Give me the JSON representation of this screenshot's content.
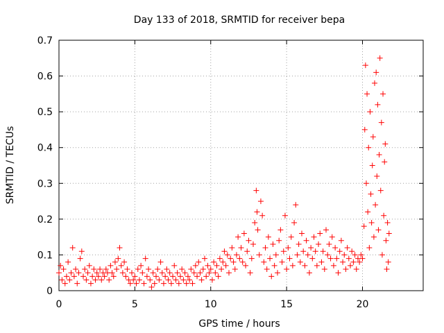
{
  "chart_data": {
    "type": "scatter",
    "title": "Day 133 of 2018, SRMTID for receiver bepa",
    "xlabel": "GPS time / hours",
    "ylabel": "SRMTID / TECUs",
    "xlim": [
      0,
      24
    ],
    "ylim": [
      0,
      0.7
    ],
    "x_ticks": [
      0,
      5,
      10,
      15,
      20
    ],
    "x_tick_labels": [
      "0",
      "5",
      "10",
      "15",
      "20"
    ],
    "y_ticks": [
      0,
      0.1,
      0.2,
      0.3,
      0.4,
      0.5,
      0.6,
      0.7
    ],
    "y_tick_labels": [
      "0",
      "0.1",
      "0.2",
      "0.3",
      "0.4",
      "0.5",
      "0.6",
      "0.7"
    ],
    "grid": true,
    "marker": "+",
    "series": [
      {
        "name": "SRMTID",
        "color": "#ff0000",
        "points": [
          [
            0.0,
            0.05
          ],
          [
            0.1,
            0.07
          ],
          [
            0.2,
            0.03
          ],
          [
            0.3,
            0.06
          ],
          [
            0.4,
            0.02
          ],
          [
            0.5,
            0.04
          ],
          [
            0.6,
            0.08
          ],
          [
            0.7,
            0.03
          ],
          [
            0.8,
            0.05
          ],
          [
            0.9,
            0.12
          ],
          [
            1.0,
            0.04
          ],
          [
            1.1,
            0.06
          ],
          [
            1.2,
            0.02
          ],
          [
            1.3,
            0.05
          ],
          [
            1.4,
            0.09
          ],
          [
            1.5,
            0.11
          ],
          [
            1.6,
            0.04
          ],
          [
            1.7,
            0.06
          ],
          [
            1.8,
            0.03
          ],
          [
            1.9,
            0.05
          ],
          [
            2.0,
            0.07
          ],
          [
            2.1,
            0.02
          ],
          [
            2.2,
            0.04
          ],
          [
            2.3,
            0.06
          ],
          [
            2.4,
            0.03
          ],
          [
            2.5,
            0.05
          ],
          [
            2.6,
            0.04
          ],
          [
            2.7,
            0.06
          ],
          [
            2.8,
            0.03
          ],
          [
            2.9,
            0.05
          ],
          [
            3.0,
            0.04
          ],
          [
            3.1,
            0.06
          ],
          [
            3.2,
            0.05
          ],
          [
            3.3,
            0.03
          ],
          [
            3.4,
            0.07
          ],
          [
            3.5,
            0.05
          ],
          [
            3.6,
            0.04
          ],
          [
            3.7,
            0.08
          ],
          [
            3.8,
            0.06
          ],
          [
            3.9,
            0.09
          ],
          [
            4.0,
            0.12
          ],
          [
            4.1,
            0.07
          ],
          [
            4.2,
            0.05
          ],
          [
            4.3,
            0.08
          ],
          [
            4.4,
            0.04
          ],
          [
            4.5,
            0.06
          ],
          [
            4.6,
            0.03
          ],
          [
            4.7,
            0.02
          ],
          [
            4.8,
            0.05
          ],
          [
            4.9,
            0.03
          ],
          [
            5.0,
            0.04
          ],
          [
            5.1,
            0.02
          ],
          [
            5.2,
            0.06
          ],
          [
            5.3,
            0.03
          ],
          [
            5.4,
            0.07
          ],
          [
            5.5,
            0.05
          ],
          [
            5.6,
            0.02
          ],
          [
            5.7,
            0.09
          ],
          [
            5.8,
            0.04
          ],
          [
            5.9,
            0.06
          ],
          [
            6.0,
            0.03
          ],
          [
            6.1,
            0.01
          ],
          [
            6.2,
            0.05
          ],
          [
            6.3,
            0.02
          ],
          [
            6.4,
            0.04
          ],
          [
            6.5,
            0.06
          ],
          [
            6.6,
            0.03
          ],
          [
            6.7,
            0.08
          ],
          [
            6.8,
            0.05
          ],
          [
            6.9,
            0.02
          ],
          [
            7.0,
            0.04
          ],
          [
            7.1,
            0.06
          ],
          [
            7.2,
            0.03
          ],
          [
            7.3,
            0.05
          ],
          [
            7.4,
            0.02
          ],
          [
            7.5,
            0.04
          ],
          [
            7.6,
            0.07
          ],
          [
            7.7,
            0.03
          ],
          [
            7.8,
            0.05
          ],
          [
            7.9,
            0.02
          ],
          [
            8.0,
            0.04
          ],
          [
            8.1,
            0.06
          ],
          [
            8.2,
            0.03
          ],
          [
            8.3,
            0.05
          ],
          [
            8.4,
            0.02
          ],
          [
            8.5,
            0.04
          ],
          [
            8.6,
            0.03
          ],
          [
            8.7,
            0.06
          ],
          [
            8.8,
            0.02
          ],
          [
            8.9,
            0.05
          ],
          [
            9.0,
            0.07
          ],
          [
            9.1,
            0.04
          ],
          [
            9.2,
            0.08
          ],
          [
            9.3,
            0.05
          ],
          [
            9.4,
            0.03
          ],
          [
            9.5,
            0.06
          ],
          [
            9.6,
            0.09
          ],
          [
            9.7,
            0.04
          ],
          [
            9.8,
            0.07
          ],
          [
            9.9,
            0.05
          ],
          [
            10.0,
            0.06
          ],
          [
            10.1,
            0.03
          ],
          [
            10.2,
            0.08
          ],
          [
            10.3,
            0.05
          ],
          [
            10.4,
            0.07
          ],
          [
            10.5,
            0.04
          ],
          [
            10.6,
            0.09
          ],
          [
            10.7,
            0.06
          ],
          [
            10.8,
            0.08
          ],
          [
            10.9,
            0.11
          ],
          [
            11.0,
            0.07
          ],
          [
            11.1,
            0.1
          ],
          [
            11.2,
            0.05
          ],
          [
            11.3,
            0.09
          ],
          [
            11.4,
            0.12
          ],
          [
            11.5,
            0.08
          ],
          [
            11.6,
            0.06
          ],
          [
            11.7,
            0.1
          ],
          [
            11.8,
            0.15
          ],
          [
            11.9,
            0.09
          ],
          [
            12.0,
            0.12
          ],
          [
            12.1,
            0.08
          ],
          [
            12.2,
            0.16
          ],
          [
            12.3,
            0.07
          ],
          [
            12.4,
            0.11
          ],
          [
            12.5,
            0.14
          ],
          [
            12.6,
            0.05
          ],
          [
            12.7,
            0.09
          ],
          [
            12.8,
            0.13
          ],
          [
            12.9,
            0.19
          ],
          [
            13.0,
            0.28
          ],
          [
            13.05,
            0.22
          ],
          [
            13.1,
            0.17
          ],
          [
            13.2,
            0.1
          ],
          [
            13.3,
            0.25
          ],
          [
            13.4,
            0.21
          ],
          [
            13.5,
            0.08
          ],
          [
            13.6,
            0.12
          ],
          [
            13.7,
            0.06
          ],
          [
            13.8,
            0.15
          ],
          [
            13.9,
            0.09
          ],
          [
            14.0,
            0.04
          ],
          [
            14.1,
            0.13
          ],
          [
            14.2,
            0.07
          ],
          [
            14.3,
            0.1
          ],
          [
            14.4,
            0.05
          ],
          [
            14.5,
            0.14
          ],
          [
            14.6,
            0.17
          ],
          [
            14.7,
            0.08
          ],
          [
            14.8,
            0.11
          ],
          [
            14.9,
            0.21
          ],
          [
            15.0,
            0.06
          ],
          [
            15.1,
            0.12
          ],
          [
            15.2,
            0.09
          ],
          [
            15.3,
            0.15
          ],
          [
            15.4,
            0.07
          ],
          [
            15.5,
            0.19
          ],
          [
            15.6,
            0.24
          ],
          [
            15.7,
            0.1
          ],
          [
            15.8,
            0.13
          ],
          [
            15.9,
            0.08
          ],
          [
            16.0,
            0.16
          ],
          [
            16.1,
            0.11
          ],
          [
            16.2,
            0.07
          ],
          [
            16.3,
            0.14
          ],
          [
            16.4,
            0.1
          ],
          [
            16.5,
            0.05
          ],
          [
            16.6,
            0.12
          ],
          [
            16.7,
            0.09
          ],
          [
            16.8,
            0.15
          ],
          [
            16.9,
            0.11
          ],
          [
            17.0,
            0.07
          ],
          [
            17.1,
            0.13
          ],
          [
            17.2,
            0.16
          ],
          [
            17.3,
            0.08
          ],
          [
            17.4,
            0.11
          ],
          [
            17.5,
            0.06
          ],
          [
            17.6,
            0.17
          ],
          [
            17.7,
            0.1
          ],
          [
            17.8,
            0.13
          ],
          [
            17.9,
            0.09
          ],
          [
            18.0,
            0.15
          ],
          [
            18.1,
            0.07
          ],
          [
            18.2,
            0.12
          ],
          [
            18.3,
            0.09
          ],
          [
            18.4,
            0.05
          ],
          [
            18.5,
            0.11
          ],
          [
            18.6,
            0.14
          ],
          [
            18.7,
            0.08
          ],
          [
            18.8,
            0.1
          ],
          [
            18.9,
            0.06
          ],
          [
            19.0,
            0.12
          ],
          [
            19.1,
            0.09
          ],
          [
            19.2,
            0.07
          ],
          [
            19.3,
            0.11
          ],
          [
            19.4,
            0.08
          ],
          [
            19.5,
            0.1
          ],
          [
            19.6,
            0.06
          ],
          [
            19.7,
            0.09
          ],
          [
            19.8,
            0.08
          ],
          [
            19.9,
            0.1
          ],
          [
            20.0,
            0.09
          ],
          [
            20.1,
            0.18
          ],
          [
            20.15,
            0.45
          ],
          [
            20.2,
            0.63
          ],
          [
            20.25,
            0.3
          ],
          [
            20.3,
            0.55
          ],
          [
            20.35,
            0.22
          ],
          [
            20.4,
            0.4
          ],
          [
            20.45,
            0.12
          ],
          [
            20.5,
            0.5
          ],
          [
            20.55,
            0.27
          ],
          [
            20.6,
            0.19
          ],
          [
            20.65,
            0.35
          ],
          [
            20.7,
            0.43
          ],
          [
            20.75,
            0.15
          ],
          [
            20.8,
            0.58
          ],
          [
            20.85,
            0.24
          ],
          [
            20.9,
            0.61
          ],
          [
            20.95,
            0.32
          ],
          [
            21.0,
            0.52
          ],
          [
            21.05,
            0.17
          ],
          [
            21.1,
            0.38
          ],
          [
            21.15,
            0.65
          ],
          [
            21.2,
            0.28
          ],
          [
            21.25,
            0.47
          ],
          [
            21.3,
            0.1
          ],
          [
            21.35,
            0.55
          ],
          [
            21.4,
            0.21
          ],
          [
            21.45,
            0.36
          ],
          [
            21.5,
            0.41
          ],
          [
            21.55,
            0.14
          ],
          [
            21.6,
            0.06
          ],
          [
            21.65,
            0.19
          ],
          [
            21.7,
            0.08
          ],
          [
            21.75,
            0.16
          ]
        ]
      }
    ]
  }
}
